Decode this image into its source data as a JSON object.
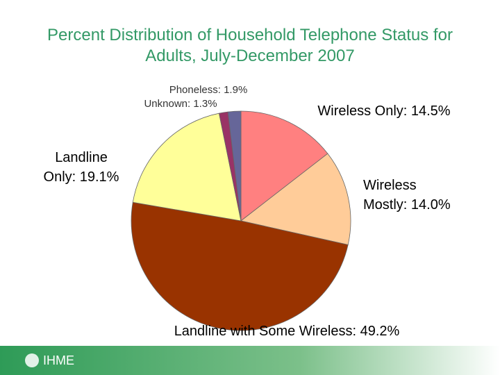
{
  "chart_data": {
    "type": "pie",
    "title": "Percent Distribution of Household Telephone Status for Adults, July-December 2007",
    "categories": [
      "Wireless Only",
      "Wireless Mostly",
      "Landline with Some Wireless",
      "Landline Only",
      "Unknown",
      "Phoneless"
    ],
    "values": [
      14.5,
      14.0,
      49.2,
      19.1,
      1.3,
      1.9
    ],
    "value_labels": [
      [
        "Wireless Only: 14.5%"
      ],
      [
        "Wireless",
        "Mostly: 14.0%"
      ],
      [
        "Landline with Some Wireless: 49.2%"
      ],
      [
        "Landline",
        "Only: 19.1%"
      ],
      [
        "Unknown: 1.3%"
      ],
      [
        "Phoneless: 1.9%"
      ]
    ],
    "colors": [
      "#ff8080",
      "#ffcc99",
      "#993300",
      "#ffff99",
      "#993366",
      "#666699"
    ]
  },
  "footer": {
    "logo": "IHME"
  }
}
